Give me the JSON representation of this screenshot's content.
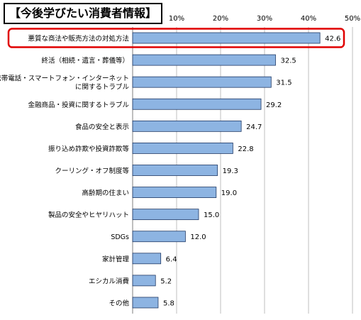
{
  "chart_data": {
    "type": "bar",
    "orientation": "horizontal",
    "title": "【今後学びたい消費者情報】",
    "x_ticks": [
      "",
      "10%",
      "20%",
      "30%",
      "40%",
      "50%"
    ],
    "xlim": [
      0,
      50
    ],
    "grid": true,
    "categories": [
      [
        "悪質な商法や販売方法の対処方法"
      ],
      [
        "終活（相続・遺言・葬儀等）"
      ],
      [
        "携帯電話・スマートフォン・インターネット",
        "に関するトラブル"
      ],
      [
        "金融商品・投資に関するトラブル"
      ],
      [
        "食品の安全と表示"
      ],
      [
        "振り込め詐欺や投資詐欺等"
      ],
      [
        "クーリング・オフ制度等"
      ],
      [
        "高齢期の住まい"
      ],
      [
        "製品の安全やヒヤリハット"
      ],
      [
        "SDGs"
      ],
      [
        "家計管理"
      ],
      [
        "エシカル消費"
      ],
      [
        "その他"
      ]
    ],
    "values": [
      42.6,
      32.5,
      31.5,
      29.2,
      24.7,
      22.8,
      19.3,
      19.0,
      15.0,
      12.0,
      6.4,
      5.2,
      5.8
    ],
    "value_labels": [
      "42.6",
      "32.5",
      "31.5",
      "29.2",
      "24.7",
      "22.8",
      "19.3",
      "19.0",
      "15.0",
      "12.0",
      "6.4",
      "5.2",
      "5.8"
    ],
    "highlight_index": 0,
    "colors": {
      "bar_fill": "#8db4e2",
      "bar_stroke": "#1f3864",
      "highlight": "#e00000",
      "grid": "#bfbfbf"
    }
  }
}
